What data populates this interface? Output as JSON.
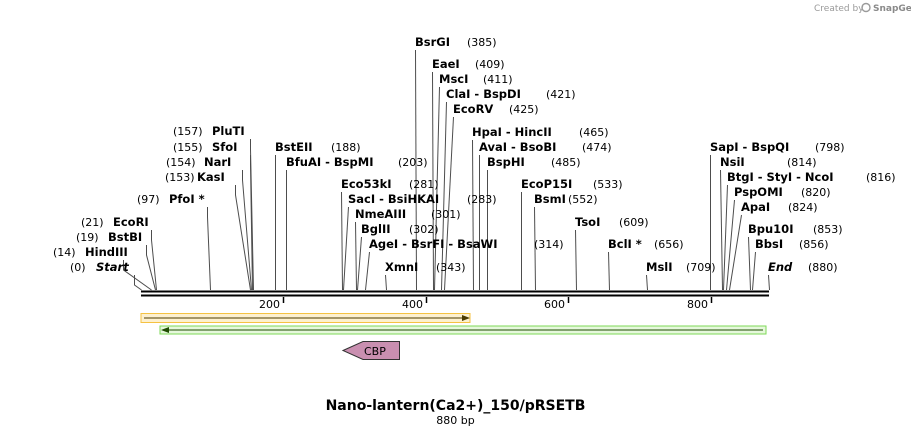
{
  "credit": {
    "text": "Created by",
    "brand": "SnapGene"
  },
  "sequence": {
    "name": "Nano-lantern(Ca2+)_150/pRSETB",
    "length_label": "880 bp",
    "length": 880
  },
  "ticks": [
    "200",
    "400",
    "600",
    "800"
  ],
  "features": [
    {
      "name": "orange-feature",
      "start": 1,
      "end": 465,
      "color": "#f5c242"
    },
    {
      "name": "green-feature",
      "start": 27,
      "end": 880,
      "color": "#7ed957"
    },
    {
      "name": "CBP",
      "label": "CBP",
      "color": "#c98fb0"
    }
  ],
  "sites": [
    {
      "name": "Start",
      "pos": 0,
      "pos_label": "(0)"
    },
    {
      "name": "HindIII",
      "pos": 14,
      "pos_label": "(14)"
    },
    {
      "name": "BstBI",
      "pos": 19,
      "pos_label": "(19)"
    },
    {
      "name": "EcoRI",
      "pos": 21,
      "pos_label": "(21)"
    },
    {
      "name": "PfoI *",
      "pos": 97,
      "pos_label": "(97)"
    },
    {
      "name": "KasI",
      "pos": 153,
      "pos_label": "(153)"
    },
    {
      "name": "NarI",
      "pos": 154,
      "pos_label": "(154)"
    },
    {
      "name": "SfoI",
      "pos": 155,
      "pos_label": "(155)"
    },
    {
      "name": "PluTI",
      "pos": 157,
      "pos_label": "(157)"
    },
    {
      "name": "BstEII",
      "pos": 188,
      "pos_label": "(188)"
    },
    {
      "name": "BfuAI  -  BspMI",
      "pos": 203,
      "pos_label": "(203)"
    },
    {
      "name": "Eco53kI",
      "pos": 281,
      "pos_label": "(281)"
    },
    {
      "name": "SacI  -  BsiHKAI",
      "pos": 283,
      "pos_label": "(283)"
    },
    {
      "name": "NmeAIII",
      "pos": 301,
      "pos_label": "(301)"
    },
    {
      "name": "BglII",
      "pos": 302,
      "pos_label": "(302)"
    },
    {
      "name": "AgeI  -  BsrFI  -  BsaWI",
      "pos": 314,
      "pos_label": "(314)"
    },
    {
      "name": "XmnI",
      "pos": 343,
      "pos_label": "(343)"
    },
    {
      "name": "BsrGI",
      "pos": 385,
      "pos_label": "(385)"
    },
    {
      "name": "EaeI",
      "pos": 409,
      "pos_label": "(409)"
    },
    {
      "name": "MscI",
      "pos": 411,
      "pos_label": "(411)"
    },
    {
      "name": "ClaI  -  BspDI",
      "pos": 421,
      "pos_label": "(421)"
    },
    {
      "name": "EcoRV",
      "pos": 425,
      "pos_label": "(425)"
    },
    {
      "name": "HpaI  -  HincII",
      "pos": 465,
      "pos_label": "(465)"
    },
    {
      "name": "AvaI  -  BsoBI",
      "pos": 474,
      "pos_label": "(474)"
    },
    {
      "name": "BspHI",
      "pos": 485,
      "pos_label": "(485)"
    },
    {
      "name": "EcoP15I",
      "pos": 533,
      "pos_label": "(533)"
    },
    {
      "name": "BsmI",
      "pos": 552,
      "pos_label": "(552)"
    },
    {
      "name": "TsoI",
      "pos": 609,
      "pos_label": "(609)"
    },
    {
      "name": "BclI *",
      "pos": 656,
      "pos_label": "(656)"
    },
    {
      "name": "MslI",
      "pos": 709,
      "pos_label": "(709)"
    },
    {
      "name": "SapI  -  BspQI",
      "pos": 798,
      "pos_label": "(798)"
    },
    {
      "name": "NsiI",
      "pos": 814,
      "pos_label": "(814)"
    },
    {
      "name": "BtgI  -  StyI  -  NcoI",
      "pos": 816,
      "pos_label": "(816)"
    },
    {
      "name": "PspOMI",
      "pos": 820,
      "pos_label": "(820)"
    },
    {
      "name": "ApaI",
      "pos": 824,
      "pos_label": "(824)"
    },
    {
      "name": "Bpu10I",
      "pos": 853,
      "pos_label": "(853)"
    },
    {
      "name": "BbsI",
      "pos": 856,
      "pos_label": "(856)"
    },
    {
      "name": "End",
      "pos": 880,
      "pos_label": "(880)"
    }
  ]
}
